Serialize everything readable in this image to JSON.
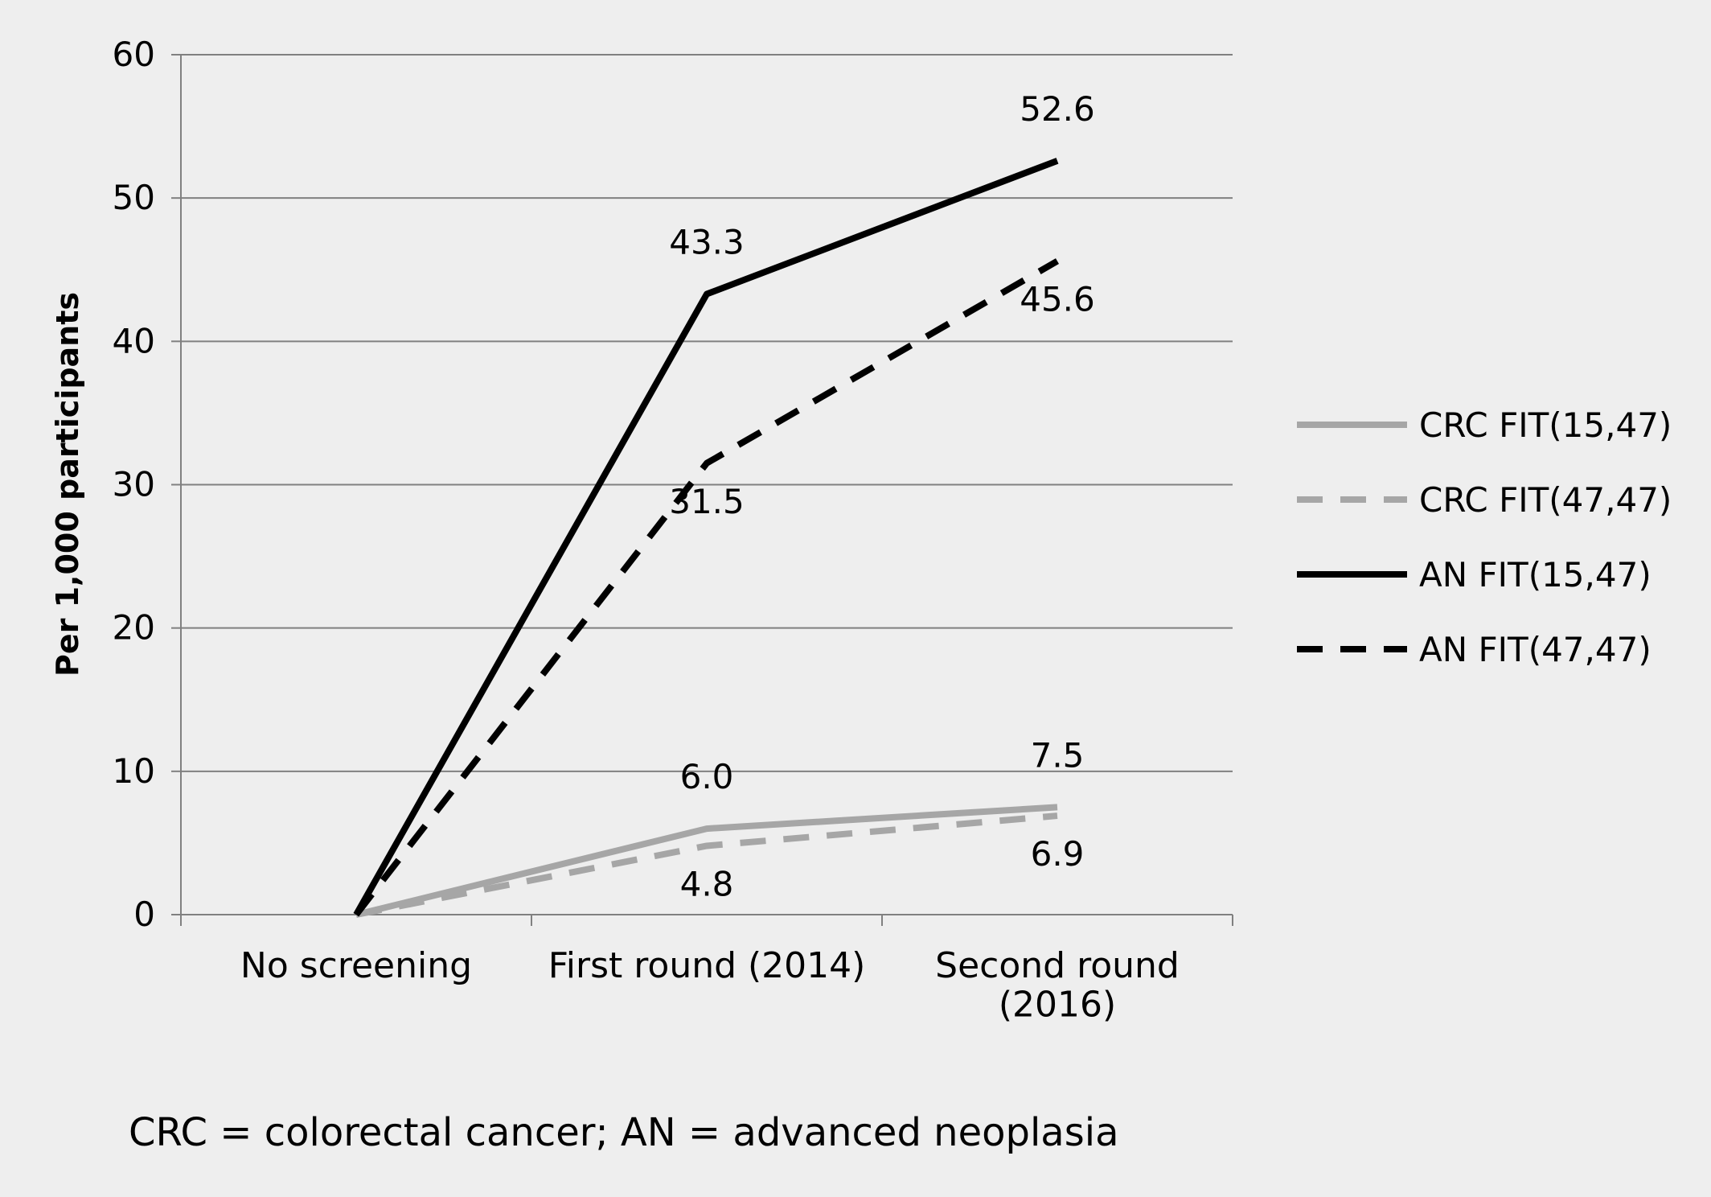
{
  "chart_data": {
    "type": "line",
    "categories": [
      [
        "No screening"
      ],
      [
        "First round (2014)"
      ],
      [
        "Second round",
        "(2016)"
      ]
    ],
    "xlabel": "",
    "ylabel": "Per 1,000 participants",
    "ylim": [
      0,
      60
    ],
    "yticks": [
      0,
      10,
      20,
      30,
      40,
      50,
      60
    ],
    "grid": true,
    "legend_position": "right",
    "series": [
      {
        "name": "CRC FIT(15,47)",
        "values": [
          0,
          6.0,
          7.5
        ],
        "color": "#a6a6a6",
        "dashed": false
      },
      {
        "name": "CRC FIT(47,47)",
        "values": [
          0,
          4.8,
          6.9
        ],
        "color": "#a6a6a6",
        "dashed": true
      },
      {
        "name": "AN FIT(15,47)",
        "values": [
          0,
          43.3,
          52.6
        ],
        "color": "#000000",
        "dashed": false
      },
      {
        "name": "AN FIT(47,47)",
        "values": [
          0,
          31.5,
          45.6
        ],
        "color": "#000000",
        "dashed": true
      }
    ],
    "data_labels": [
      {
        "series": 0,
        "point": 1,
        "text": "6.0",
        "side": "above"
      },
      {
        "series": 0,
        "point": 2,
        "text": "7.5",
        "side": "above"
      },
      {
        "series": 1,
        "point": 1,
        "text": "4.8",
        "side": "below"
      },
      {
        "series": 1,
        "point": 2,
        "text": "6.9",
        "side": "below"
      },
      {
        "series": 2,
        "point": 1,
        "text": "43.3",
        "side": "above"
      },
      {
        "series": 2,
        "point": 2,
        "text": "52.6",
        "side": "above"
      },
      {
        "series": 3,
        "point": 1,
        "text": "31.5",
        "side": "below"
      },
      {
        "series": 3,
        "point": 2,
        "text": "45.6",
        "side": "below"
      }
    ]
  },
  "footnote": "CRC = colorectal cancer; AN = advanced neoplasia"
}
